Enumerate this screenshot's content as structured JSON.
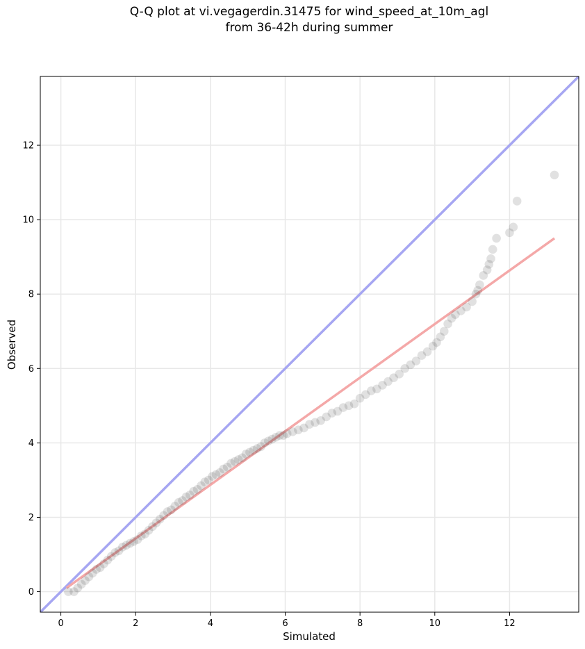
{
  "chart_data": {
    "type": "scatter",
    "title_line1": "Q-Q plot at vi.vegagerdin.31475 for wind_speed_at_10m_agl",
    "title_line2": "from 36-42h during summer",
    "xlabel": "Simulated",
    "ylabel": "Observed",
    "xlim": [
      -0.55,
      13.85
    ],
    "ylim": [
      -0.55,
      13.85
    ],
    "xticks": [
      0,
      2,
      4,
      6,
      8,
      10,
      12
    ],
    "yticks": [
      0,
      2,
      4,
      6,
      8,
      10,
      12
    ],
    "grid": true,
    "reference_line": {
      "x": [
        -0.55,
        13.85
      ],
      "y": [
        -0.55,
        13.85
      ],
      "color": "#a6a6f2"
    },
    "fit_line": {
      "x": [
        0.15,
        13.2
      ],
      "y": [
        0.1,
        9.5
      ],
      "color": "#f4a8a8"
    },
    "point_color": "#333333",
    "points": [
      [
        0.2,
        0.0
      ],
      [
        0.35,
        0.0
      ],
      [
        0.45,
        0.1
      ],
      [
        0.55,
        0.2
      ],
      [
        0.65,
        0.3
      ],
      [
        0.75,
        0.4
      ],
      [
        0.85,
        0.5
      ],
      [
        0.95,
        0.6
      ],
      [
        1.05,
        0.65
      ],
      [
        1.15,
        0.75
      ],
      [
        1.25,
        0.85
      ],
      [
        1.35,
        0.95
      ],
      [
        1.45,
        1.05
      ],
      [
        1.55,
        1.1
      ],
      [
        1.65,
        1.2
      ],
      [
        1.75,
        1.25
      ],
      [
        1.85,
        1.3
      ],
      [
        1.95,
        1.35
      ],
      [
        2.05,
        1.4
      ],
      [
        2.15,
        1.5
      ],
      [
        2.25,
        1.55
      ],
      [
        2.35,
        1.65
      ],
      [
        2.45,
        1.75
      ],
      [
        2.55,
        1.85
      ],
      [
        2.65,
        1.95
      ],
      [
        2.75,
        2.05
      ],
      [
        2.85,
        2.15
      ],
      [
        2.95,
        2.2
      ],
      [
        3.05,
        2.3
      ],
      [
        3.15,
        2.4
      ],
      [
        3.25,
        2.45
      ],
      [
        3.35,
        2.55
      ],
      [
        3.45,
        2.6
      ],
      [
        3.55,
        2.7
      ],
      [
        3.65,
        2.75
      ],
      [
        3.75,
        2.85
      ],
      [
        3.85,
        2.95
      ],
      [
        3.95,
        3.0
      ],
      [
        4.05,
        3.1
      ],
      [
        4.15,
        3.15
      ],
      [
        4.25,
        3.2
      ],
      [
        4.35,
        3.3
      ],
      [
        4.45,
        3.35
      ],
      [
        4.55,
        3.45
      ],
      [
        4.65,
        3.5
      ],
      [
        4.75,
        3.55
      ],
      [
        4.85,
        3.6
      ],
      [
        4.95,
        3.7
      ],
      [
        5.05,
        3.75
      ],
      [
        5.15,
        3.8
      ],
      [
        5.25,
        3.85
      ],
      [
        5.35,
        3.9
      ],
      [
        5.45,
        4.0
      ],
      [
        5.55,
        4.05
      ],
      [
        5.65,
        4.1
      ],
      [
        5.75,
        4.15
      ],
      [
        5.85,
        4.2
      ],
      [
        5.95,
        4.2
      ],
      [
        6.05,
        4.25
      ],
      [
        6.2,
        4.3
      ],
      [
        6.35,
        4.35
      ],
      [
        6.5,
        4.4
      ],
      [
        6.65,
        4.5
      ],
      [
        6.8,
        4.55
      ],
      [
        6.95,
        4.6
      ],
      [
        7.1,
        4.7
      ],
      [
        7.25,
        4.8
      ],
      [
        7.4,
        4.85
      ],
      [
        7.55,
        4.95
      ],
      [
        7.7,
        5.0
      ],
      [
        7.85,
        5.05
      ],
      [
        8.0,
        5.2
      ],
      [
        8.15,
        5.3
      ],
      [
        8.3,
        5.4
      ],
      [
        8.45,
        5.45
      ],
      [
        8.6,
        5.55
      ],
      [
        8.75,
        5.65
      ],
      [
        8.9,
        5.75
      ],
      [
        9.05,
        5.85
      ],
      [
        9.2,
        6.0
      ],
      [
        9.35,
        6.1
      ],
      [
        9.5,
        6.2
      ],
      [
        9.65,
        6.35
      ],
      [
        9.8,
        6.45
      ],
      [
        9.95,
        6.6
      ],
      [
        10.05,
        6.7
      ],
      [
        10.15,
        6.85
      ],
      [
        10.25,
        7.0
      ],
      [
        10.35,
        7.2
      ],
      [
        10.45,
        7.35
      ],
      [
        10.55,
        7.45
      ],
      [
        10.7,
        7.55
      ],
      [
        10.85,
        7.65
      ],
      [
        11.0,
        7.8
      ],
      [
        11.1,
        8.0
      ],
      [
        11.15,
        8.1
      ],
      [
        11.2,
        8.25
      ],
      [
        11.3,
        8.5
      ],
      [
        11.4,
        8.65
      ],
      [
        11.45,
        8.8
      ],
      [
        11.5,
        8.95
      ],
      [
        11.55,
        9.2
      ],
      [
        11.65,
        9.5
      ],
      [
        12.0,
        9.65
      ],
      [
        12.1,
        9.8
      ],
      [
        12.2,
        10.5
      ],
      [
        13.2,
        11.2
      ]
    ]
  }
}
